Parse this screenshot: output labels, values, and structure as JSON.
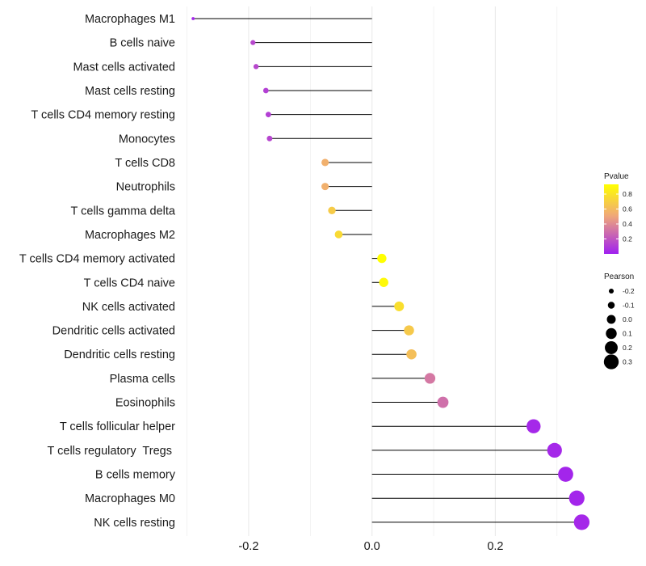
{
  "chart_data": {
    "type": "lollipop",
    "categories": [
      "Macrophages M1",
      "B cells naive",
      "Mast cells activated",
      "Mast cells resting",
      "T cells CD4 memory resting",
      "Monocytes",
      "T cells CD8",
      "Neutrophils",
      "T cells gamma delta",
      "Macrophages M2",
      "T cells CD4 memory activated",
      "T cells CD4 naive",
      "NK cells activated",
      "Dendritic cells activated",
      "Dendritic cells resting",
      "Plasma cells",
      "Eosinophils",
      "T cells follicular helper",
      "T cells regulatory  Tregs ",
      "B cells memory",
      "Macrophages M0",
      "NK cells resting"
    ],
    "pearson": [
      -0.29,
      -0.193,
      -0.188,
      -0.172,
      -0.168,
      -0.166,
      -0.076,
      -0.076,
      -0.065,
      -0.054,
      0.016,
      0.019,
      0.044,
      0.06,
      0.064,
      0.094,
      0.115,
      0.262,
      0.296,
      0.314,
      0.332,
      0.34
    ],
    "pvalue": [
      0.02,
      0.15,
      0.15,
      0.12,
      0.12,
      0.14,
      0.55,
      0.55,
      0.68,
      0.75,
      0.93,
      0.9,
      0.77,
      0.67,
      0.62,
      0.33,
      0.3,
      0.03,
      0.03,
      0.02,
      0.02,
      0.03
    ],
    "x_ticks": [
      -0.2,
      0.0,
      0.2
    ],
    "x_tick_labels": [
      "-0.2",
      "0.0",
      "0.2"
    ],
    "xlim": [
      -0.302,
      0.35
    ],
    "xlabel": "",
    "ylabel": "",
    "color_legend": {
      "title": "Pvalue",
      "ticks": [
        0.8,
        0.6,
        0.4,
        0.2
      ],
      "tick_labels": [
        "0.8",
        "0.6",
        "0.4",
        "0.2"
      ],
      "range": [
        0.0,
        0.93
      ],
      "low_color": "#a020f0",
      "mid_color": "#f0a878",
      "high_color": "#ffff00"
    },
    "size_legend": {
      "title": "Pearson",
      "values": [
        -0.2,
        -0.1,
        0.0,
        0.1,
        0.2,
        0.3
      ],
      "labels": [
        "-0.2",
        "-0.1",
        "0.0",
        "0.1",
        "0.2",
        "0.3"
      ]
    },
    "colors": {
      "grid": "#ebebeb",
      "stem": "#000000",
      "legend_point": "#000000"
    }
  }
}
